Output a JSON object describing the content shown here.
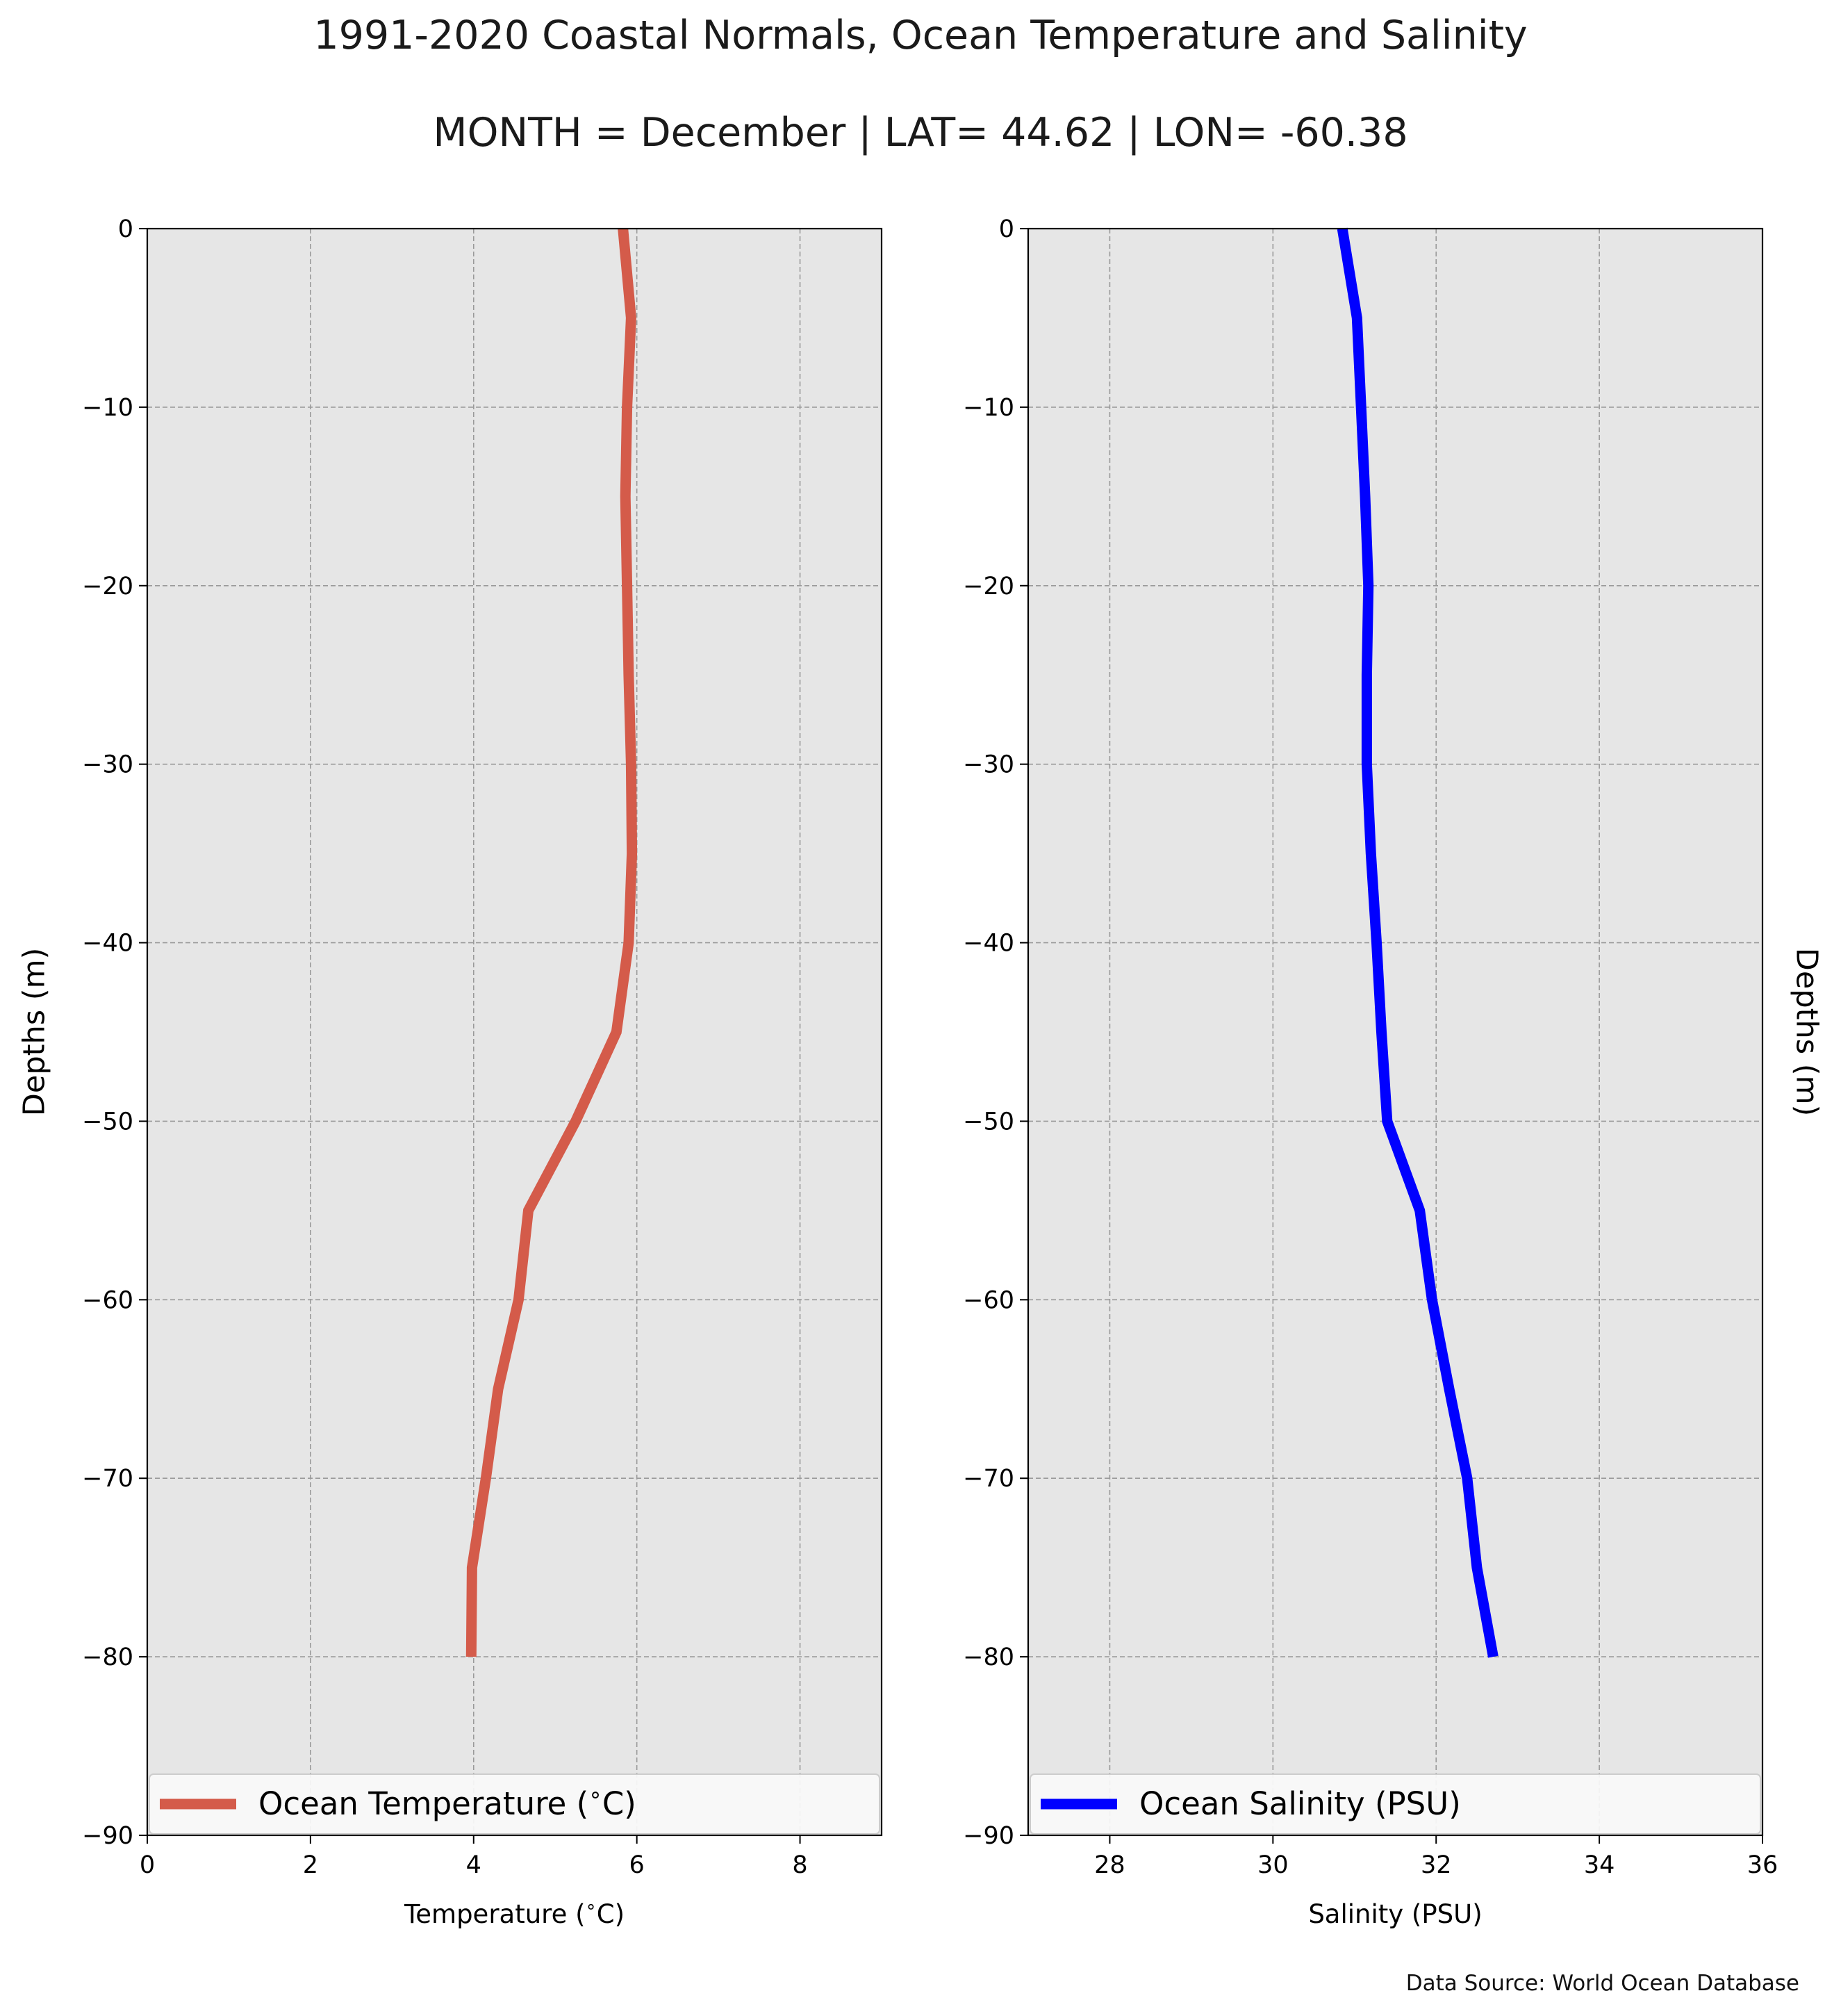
{
  "titles": {
    "line1": "1991-2020 Coastal Normals, Ocean Temperature and Salinity",
    "line2": "MONTH = December | LAT= 44.62 | LON= -60.38"
  },
  "footer": {
    "source": "Data Source: World Ocean Database"
  },
  "colors": {
    "temperature_line": "#d45b4a",
    "salinity_line": "#0000ff",
    "plot_background": "#e6e6e6",
    "grid": "#9a9a9a"
  },
  "chart_data": [
    {
      "type": "line",
      "xlabel": "Temperature ($^\\circ$C)",
      "ylabel": "Depths (m)",
      "xlim": [
        0,
        9
      ],
      "ylim": [
        -90,
        0
      ],
      "xticks": [
        0,
        2,
        4,
        6,
        8
      ],
      "xtick_labels": [
        "0",
        "2",
        "4",
        "6",
        "8"
      ],
      "yticks": [
        0,
        -10,
        -20,
        -30,
        -40,
        -50,
        -60,
        -70,
        -80,
        -90
      ],
      "ytick_labels": [
        "0",
        "−10",
        "−20",
        "−30",
        "−40",
        "−50",
        "−60",
        "−70",
        "−80",
        "−90"
      ],
      "ylabel_side": "left",
      "grid": true,
      "legend_position": "bottom",
      "series": [
        {
          "name": "Ocean Temperature ($^\\circ$C)",
          "color": "#d45b4a",
          "x": [
            5.83,
            5.93,
            5.88,
            5.86,
            5.88,
            5.9,
            5.93,
            5.94,
            5.9,
            5.75,
            5.25,
            4.67,
            4.55,
            4.3,
            4.15,
            3.98,
            3.97
          ],
          "y": [
            0,
            -5,
            -10,
            -15,
            -20,
            -25,
            -30,
            -35,
            -40,
            -45,
            -50,
            -55,
            -60,
            -65,
            -70,
            -75,
            -80
          ]
        }
      ]
    },
    {
      "type": "line",
      "xlabel": "Salinity (PSU)",
      "ylabel": "Depths (m)",
      "xlim": [
        27,
        36
      ],
      "ylim": [
        -90,
        0
      ],
      "xticks": [
        28,
        30,
        32,
        34,
        36
      ],
      "xtick_labels": [
        "28",
        "30",
        "32",
        "34",
        "36"
      ],
      "yticks": [
        0,
        -10,
        -20,
        -30,
        -40,
        -50,
        -60,
        -70,
        -80,
        -90
      ],
      "ytick_labels": [
        "0",
        "−10",
        "−20",
        "−30",
        "−40",
        "−50",
        "−60",
        "−70",
        "−80",
        "−90"
      ],
      "ylabel_side": "right",
      "grid": true,
      "legend_position": "bottom",
      "series": [
        {
          "name": "Ocean Salinity (PSU)",
          "color": "#0000ff",
          "x": [
            30.85,
            31.03,
            31.08,
            31.13,
            31.17,
            31.15,
            31.15,
            31.2,
            31.27,
            31.33,
            31.4,
            31.8,
            31.95,
            32.16,
            32.38,
            32.5,
            32.7
          ],
          "y": [
            0,
            -5,
            -10,
            -15,
            -20,
            -25,
            -30,
            -35,
            -40,
            -45,
            -50,
            -55,
            -60,
            -65,
            -70,
            -75,
            -80
          ]
        }
      ]
    }
  ]
}
